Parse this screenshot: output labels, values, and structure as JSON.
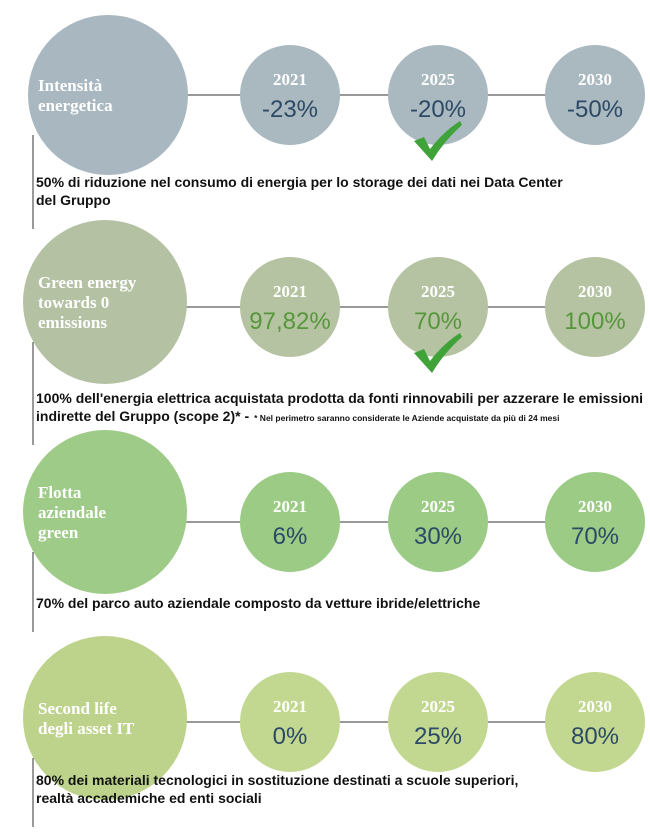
{
  "sections": [
    {
      "title": [
        "Intensità",
        "energetica"
      ],
      "milestones": [
        {
          "year": "2021",
          "value": "-23%"
        },
        {
          "year": "2025",
          "value": "-20%",
          "check": true
        },
        {
          "year": "2030",
          "value": "-50%"
        }
      ],
      "description": [
        "50% di riduzione nel consumo di energia per lo storage dei dati nei Data Center",
        "del Gruppo"
      ]
    },
    {
      "title": [
        "Green energy",
        "towards 0",
        "emissions"
      ],
      "milestones": [
        {
          "year": "2021",
          "value": "97,82%"
        },
        {
          "year": "2025",
          "value": "70%",
          "check": true
        },
        {
          "year": "2030",
          "value": "100%"
        }
      ],
      "description": [
        "100% dell'energia elettrica acquistata prodotta da fonti rinnovabili per azzerare le emissioni",
        "indirette del Gruppo (scope 2)* -"
      ],
      "note": "* Nel perimetro saranno considerate le Aziende acquistate da più di 24 mesi"
    },
    {
      "title": [
        "Flotta",
        "aziendale",
        "green"
      ],
      "milestones": [
        {
          "year": "2021",
          "value": "6%"
        },
        {
          "year": "2025",
          "value": "30%"
        },
        {
          "year": "2030",
          "value": "70%"
        }
      ],
      "description": [
        "70% del parco auto aziendale composto da vetture ibride/elettriche"
      ]
    },
    {
      "title": [
        "Second life",
        "degli asset IT"
      ],
      "milestones": [
        {
          "year": "2021",
          "value": "0%"
        },
        {
          "year": "2025",
          "value": "25%"
        },
        {
          "year": "2030",
          "value": "80%"
        }
      ],
      "description": [
        "80% dei materiali tecnologici in sostituzione destinati a scuole superiori,",
        "realtà accademiche ed enti sociali"
      ]
    }
  ]
}
